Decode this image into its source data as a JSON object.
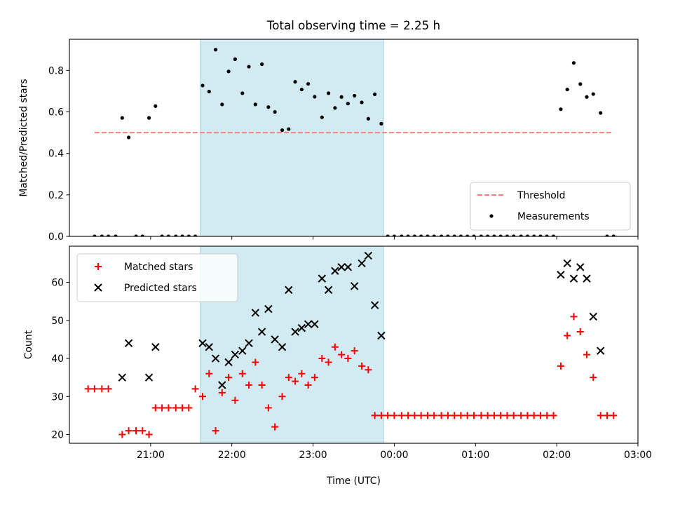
{
  "chart_data": {
    "type": "scatter",
    "title": "Total observing time = 2.25 h",
    "xlabel": "Time (UTC)",
    "x_tick_labels": [
      "21:00",
      "22:00",
      "23:00",
      "00:00",
      "01:00",
      "02:00",
      "03:00"
    ],
    "x_tick_hours": [
      21,
      22,
      23,
      24,
      25,
      26,
      27
    ],
    "xlim": [
      20.0,
      27.0
    ],
    "shaded_region": {
      "start": 21.61,
      "end": 23.87,
      "color": "#add8e6"
    },
    "panels": [
      {
        "ylabel": "Matched/Predicted stars",
        "ylim": [
          0,
          0.95
        ],
        "y_ticks": [
          0.0,
          0.2,
          0.4,
          0.6,
          0.8
        ],
        "y_tick_labels": [
          "0.0",
          "0.2",
          "0.4",
          "0.6",
          "0.8"
        ],
        "legend": {
          "position": "lower right"
        },
        "series": [
          {
            "name": "Threshold",
            "kind": "line",
            "style": "dashed",
            "color": "#ff7f7f",
            "x": [
              20.31,
              26.7
            ],
            "y": [
              0.5,
              0.5
            ]
          },
          {
            "name": "Measurements",
            "kind": "dots",
            "color": "#000000",
            "x": [
              20.31,
              20.4,
              20.48,
              20.57,
              20.65,
              20.73,
              20.82,
              20.9,
              20.98,
              21.06,
              21.14,
              21.22,
              21.31,
              21.39,
              21.47,
              21.55,
              21.64,
              21.72,
              21.8,
              21.88,
              21.96,
              22.04,
              22.13,
              22.21,
              22.29,
              22.37,
              22.45,
              22.53,
              22.62,
              22.7,
              22.78,
              22.86,
              22.94,
              23.02,
              23.11,
              23.19,
              23.27,
              23.35,
              23.43,
              23.51,
              23.6,
              23.68,
              23.76,
              23.84,
              23.92,
              24.0,
              24.09,
              24.17,
              24.25,
              24.33,
              24.41,
              24.49,
              24.58,
              24.66,
              24.74,
              24.82,
              24.9,
              24.98,
              25.07,
              25.15,
              25.23,
              25.31,
              25.39,
              25.47,
              25.56,
              25.64,
              25.72,
              25.8,
              25.88,
              25.96,
              26.05,
              26.13,
              26.21,
              26.29,
              26.37,
              26.45,
              26.54,
              26.62,
              26.7
            ],
            "y": [
              0.0,
              0.0,
              0.0,
              0.0,
              0.571,
              0.477,
              0.0,
              0.0,
              0.571,
              0.628,
              0.0,
              0.0,
              0.0,
              0.0,
              0.0,
              0.0,
              0.727,
              0.698,
              0.9,
              0.636,
              0.795,
              0.854,
              0.69,
              0.818,
              0.636,
              0.83,
              0.623,
              0.6,
              0.512,
              0.517,
              0.745,
              0.708,
              0.735,
              0.673,
              0.574,
              0.69,
              0.619,
              0.672,
              0.64,
              0.678,
              0.646,
              0.567,
              0.685,
              0.543,
              0.0,
              0.0,
              0.0,
              0.0,
              0.0,
              0.0,
              0.0,
              0.0,
              0.0,
              0.0,
              0.0,
              0.0,
              0.0,
              0.0,
              0.0,
              0.0,
              0.0,
              0.0,
              0.0,
              0.0,
              0.0,
              0.0,
              0.0,
              0.0,
              0.0,
              0.0,
              0.613,
              0.708,
              0.836,
              0.734,
              0.672,
              0.686,
              0.595,
              0.0,
              0.0
            ]
          }
        ]
      },
      {
        "ylabel": "Count",
        "ylim": [
          17.7,
          69.5
        ],
        "y_ticks": [
          20,
          30,
          40,
          50,
          60
        ],
        "y_tick_labels": [
          "20",
          "30",
          "40",
          "50",
          "60"
        ],
        "legend": {
          "position": "upper left"
        },
        "series": [
          {
            "name": "Matched stars",
            "kind": "plus",
            "color": "#ff0000",
            "x": [
              20.23,
              20.31,
              20.4,
              20.48,
              20.65,
              20.73,
              20.82,
              20.9,
              20.98,
              21.06,
              21.14,
              21.22,
              21.31,
              21.39,
              21.47,
              21.55,
              21.64,
              21.72,
              21.8,
              21.88,
              21.96,
              22.04,
              22.13,
              22.21,
              22.29,
              22.37,
              22.45,
              22.53,
              22.62,
              22.7,
              22.78,
              22.86,
              22.94,
              23.02,
              23.11,
              23.19,
              23.27,
              23.35,
              23.43,
              23.51,
              23.6,
              23.68,
              23.76,
              23.84,
              23.92,
              24.0,
              24.09,
              24.17,
              24.25,
              24.33,
              24.41,
              24.49,
              24.58,
              24.66,
              24.74,
              24.82,
              24.9,
              24.98,
              25.07,
              25.15,
              25.23,
              25.31,
              25.39,
              25.47,
              25.56,
              25.64,
              25.72,
              25.8,
              25.88,
              25.96,
              26.05,
              26.13,
              26.21,
              26.29,
              26.37,
              26.45,
              26.54,
              26.62,
              26.7
            ],
            "y": [
              32,
              32,
              32,
              32,
              20,
              21,
              21,
              21,
              20,
              27,
              27,
              27,
              27,
              27,
              27,
              32,
              30,
              36,
              21,
              31,
              35,
              29,
              36,
              33,
              39,
              33,
              27,
              22,
              30,
              35,
              34,
              36,
              33,
              35,
              40,
              39,
              43,
              41,
              40,
              42,
              38,
              37,
              25,
              25,
              25,
              25,
              25,
              25,
              25,
              25,
              25,
              25,
              25,
              25,
              25,
              25,
              25,
              25,
              25,
              25,
              25,
              25,
              25,
              25,
              25,
              25,
              25,
              25,
              25,
              25,
              38,
              46,
              51,
              47,
              41,
              35,
              25,
              25,
              25
            ]
          },
          {
            "name": "Predicted stars",
            "kind": "x",
            "color": "#000000",
            "x": [
              20.65,
              20.73,
              20.98,
              21.06,
              21.64,
              21.72,
              21.8,
              21.88,
              21.96,
              22.04,
              22.13,
              22.21,
              22.29,
              22.37,
              22.45,
              22.53,
              22.62,
              22.7,
              22.78,
              22.86,
              22.94,
              23.02,
              23.11,
              23.19,
              23.27,
              23.35,
              23.43,
              23.51,
              23.6,
              23.68,
              23.76,
              23.84,
              26.05,
              26.13,
              26.21,
              26.29,
              26.37,
              26.45,
              26.54
            ],
            "y": [
              35,
              44,
              35,
              43,
              44,
              43,
              40,
              33,
              39,
              41,
              42,
              44,
              52,
              47,
              53,
              45,
              43,
              58,
              47,
              48,
              49,
              49,
              61,
              58,
              63,
              64,
              64,
              59,
              65,
              67,
              54,
              46,
              62,
              65,
              61,
              64,
              61,
              51,
              42
            ]
          }
        ]
      }
    ]
  }
}
